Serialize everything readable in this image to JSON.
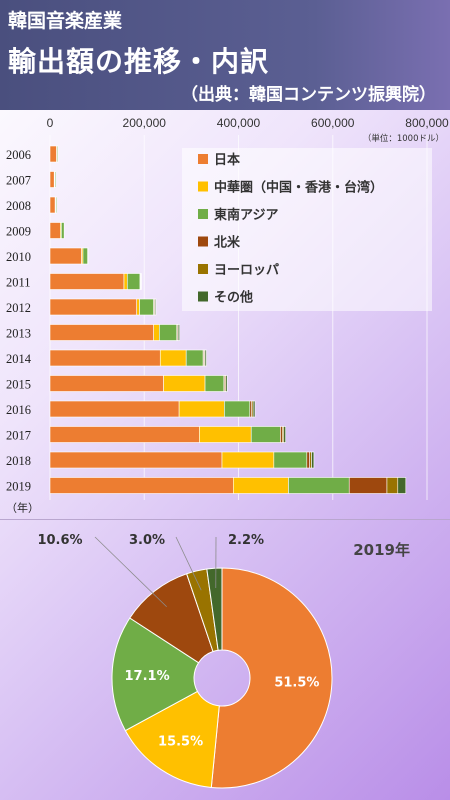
{
  "header": {
    "title_line1": "韓国音楽産業",
    "title_line2": "輸出額の推移・内訳",
    "source": "（出典：韓国コンテンツ振興院）"
  },
  "colors": {
    "日本": "#ED7D31",
    "中華圏": "#FFC000",
    "東南アジア": "#70AD47",
    "北米": "#9E480E",
    "ヨーロッパ": "#997300",
    "その他": "#43682B"
  },
  "chart_data": [
    {
      "type": "bar",
      "orientation": "horizontal",
      "stacked": true,
      "unit_note": "（単位：1000ドル）",
      "year_suffix": "（年）",
      "xlim": [
        0,
        800000
      ],
      "x_ticks": [
        "0",
        "200,000",
        "400,000",
        "600,000",
        "800,000"
      ],
      "grid": true,
      "legend_position": "top-right",
      "categories": [
        "2006",
        "2007",
        "2008",
        "2009",
        "2010",
        "2011",
        "2012",
        "2013",
        "2014",
        "2015",
        "2016",
        "2017",
        "2018",
        "2019"
      ],
      "series": [
        {
          "name": "日本",
          "legend": "日本",
          "values": [
            14000,
            9000,
            11000,
            22000,
            67000,
            157000,
            184000,
            220000,
            234000,
            241000,
            274000,
            317000,
            365000,
            389000
          ]
        },
        {
          "name": "中華圏",
          "legend": "中華圏（中国・香港・台湾）",
          "values": [
            1000,
            1000,
            1000,
            2000,
            3000,
            7000,
            6000,
            12000,
            55000,
            88000,
            96000,
            110000,
            110000,
            117000
          ]
        },
        {
          "name": "東南アジア",
          "legend": "東南アジア",
          "values": [
            2000,
            2000,
            2000,
            6000,
            10000,
            27000,
            30000,
            37000,
            36000,
            40000,
            54000,
            62000,
            70000,
            129000
          ]
        },
        {
          "name": "北米",
          "legend": "北米",
          "values": [
            0,
            0,
            0,
            0,
            0,
            1000,
            2000,
            2000,
            2000,
            2000,
            4000,
            4000,
            6000,
            80000
          ]
        },
        {
          "name": "ヨーロッパ",
          "legend": "ヨーロッパ",
          "values": [
            0,
            0,
            0,
            0,
            0,
            1000,
            1000,
            1000,
            2000,
            2000,
            3000,
            3000,
            4000,
            23000
          ]
        },
        {
          "name": "その他",
          "legend": "その他",
          "values": [
            0,
            0,
            0,
            0,
            1000,
            1000,
            2000,
            3000,
            3000,
            3000,
            4000,
            4000,
            5000,
            17000
          ]
        }
      ]
    },
    {
      "type": "pie",
      "donut": true,
      "title": "2019年",
      "slices": [
        {
          "name": "日本",
          "value": 51.5,
          "label": "51.5%"
        },
        {
          "name": "中華圏",
          "value": 15.5,
          "label": "15.5%"
        },
        {
          "name": "東南アジア",
          "value": 17.1,
          "label": "17.1%"
        },
        {
          "name": "北米",
          "value": 10.6,
          "label": "10.6%"
        },
        {
          "name": "ヨーロッパ",
          "value": 3.0,
          "label": "3.0%"
        },
        {
          "name": "その他",
          "value": 2.2,
          "label": "2.2%"
        }
      ]
    }
  ]
}
